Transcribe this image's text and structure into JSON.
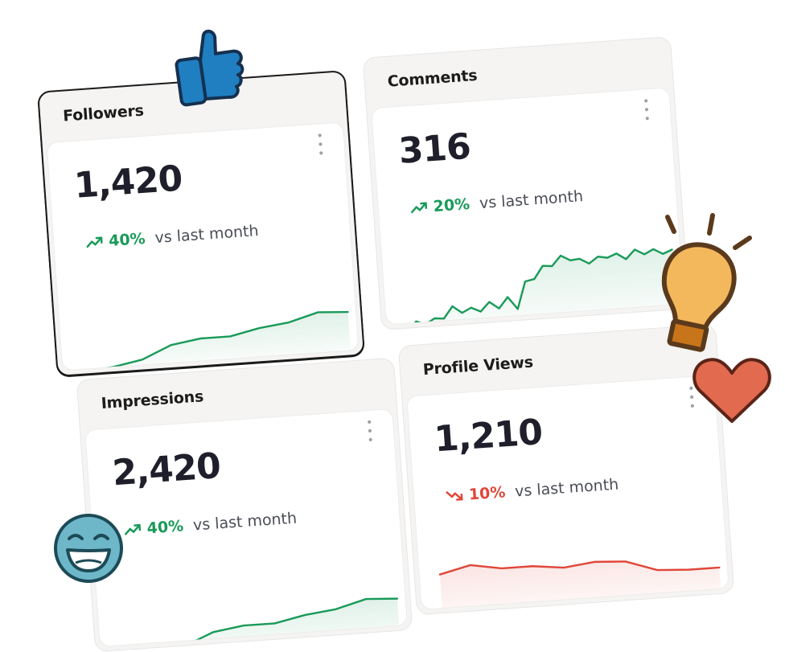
{
  "colors": {
    "up": "#1a9a59",
    "down": "#e0473a",
    "text": "#1e1f2a"
  },
  "cards": {
    "followers": {
      "title": "Followers",
      "value": "1,420",
      "trend": "up",
      "change": "40%",
      "comparison": "vs last month",
      "sparkline": [
        5,
        8,
        14,
        28,
        33,
        33,
        40,
        44,
        53,
        51
      ]
    },
    "comments": {
      "title": "Comments",
      "value": "316",
      "trend": "up",
      "change": "20%",
      "comparison": "vs last month",
      "sparkline": [
        8,
        22,
        18,
        24,
        23,
        36,
        28,
        33,
        28,
        38,
        30,
        42,
        28,
        58,
        60,
        74,
        73,
        84,
        78,
        79,
        73,
        80,
        78,
        82,
        75,
        85,
        79,
        84,
        78,
        82
      ]
    },
    "impressions": {
      "title": "Impressions",
      "value": "2,420",
      "trend": "up",
      "change": "40%",
      "comparison": "vs last month",
      "sparkline": [
        5,
        8,
        14,
        28,
        33,
        33,
        40,
        44,
        53,
        51
      ]
    },
    "profile_views": {
      "title": "Profile Views",
      "value": "1,210",
      "trend": "down",
      "change": "10%",
      "comparison": "vs last month",
      "sparkline": [
        62,
        70,
        64,
        64,
        60,
        64,
        62,
        50,
        48,
        48
      ]
    }
  },
  "decorations": [
    "thumbs-up-icon",
    "lightbulb-icon",
    "heart-icon",
    "laughing-face-icon"
  ]
}
